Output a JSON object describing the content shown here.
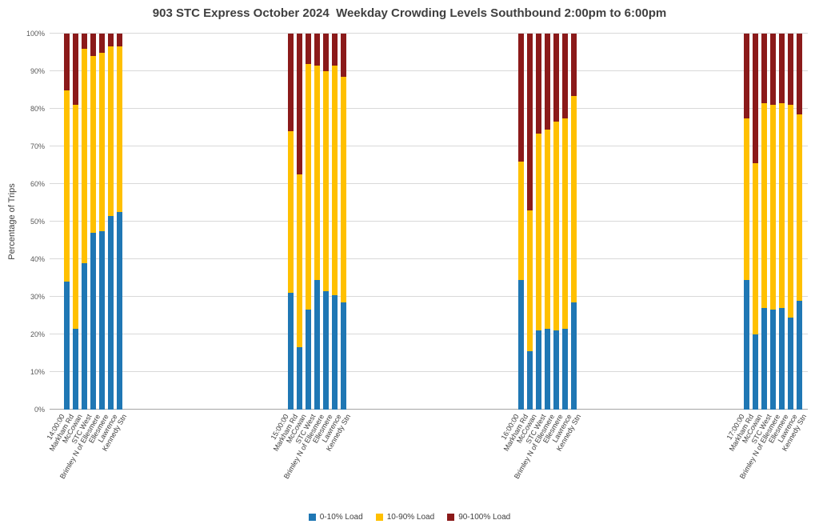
{
  "chart_data": {
    "type": "bar",
    "stacked": true,
    "title": "903 STC Express October 2024  Weekday Crowding Levels Southbound 2:00pm to 6:00pm",
    "ylabel": "Percentage of Trips",
    "ylim": [
      0,
      100
    ],
    "grid": true,
    "legend_position": "bottom",
    "y_tick_labels": [
      "0%",
      "10%",
      "20%",
      "30%",
      "40%",
      "50%",
      "60%",
      "70%",
      "80%",
      "90%",
      "100%"
    ],
    "series_names": [
      "0-10% Load",
      "10-90% Load",
      "90-100% Load"
    ],
    "colors": [
      "#1F77B4",
      "#FFC000",
      "#8B1A1A"
    ],
    "groups": [
      {
        "time": "14:00:00",
        "stops": [
          "Markham Rd",
          "McCowan",
          "STC West",
          "Brimley N of Ellesmere",
          "Ellesmere",
          "Lawrence",
          "Kennedy Stn"
        ],
        "values": [
          [
            34,
            21.5,
            39,
            47,
            47.5,
            51.5,
            52.5
          ],
          [
            51,
            59.5,
            57,
            47,
            47.5,
            45,
            44
          ],
          [
            15,
            19,
            4,
            6,
            5,
            3.5,
            3.5
          ]
        ]
      },
      {
        "time": "15:00:00",
        "stops": [
          "Markham Rd",
          "McCowan",
          "STC West",
          "Brimley N of Ellesmere",
          "Ellesmere",
          "Lawrence",
          "Kennedy Stn"
        ],
        "values": [
          [
            31,
            16.5,
            26.5,
            34.5,
            31.5,
            30.5,
            28.5
          ],
          [
            43,
            46,
            65.5,
            57,
            58.5,
            61,
            60
          ],
          [
            26,
            37.5,
            8,
            8.5,
            10,
            8.5,
            11.5
          ]
        ]
      },
      {
        "time": "16:00:00",
        "stops": [
          "Markham Rd",
          "McCowan",
          "STC West",
          "Brimley N of Ellesmere",
          "Ellesmere",
          "Lawrence",
          "Kennedy Stn"
        ],
        "values": [
          [
            34.5,
            15.5,
            21,
            21.5,
            21,
            21.5,
            28.5
          ],
          [
            31.5,
            37.5,
            52.5,
            53,
            55.5,
            56,
            55
          ],
          [
            34,
            47,
            26.5,
            25.5,
            23.5,
            22.5,
            16.5
          ]
        ]
      },
      {
        "time": "17:00:00",
        "stops": [
          "Markham Rd",
          "McCowan",
          "STC West",
          "Brimley N of Ellesmere",
          "Ellesmere",
          "Lawrence",
          "Kennedy Stn"
        ],
        "values": [
          [
            34.5,
            20,
            27,
            26.5,
            27,
            24.5,
            29
          ],
          [
            43,
            45.5,
            54.5,
            54.5,
            54.5,
            56.5,
            49.5
          ],
          [
            22.5,
            34.5,
            18.5,
            19,
            18.5,
            19,
            21.5
          ]
        ]
      }
    ]
  }
}
